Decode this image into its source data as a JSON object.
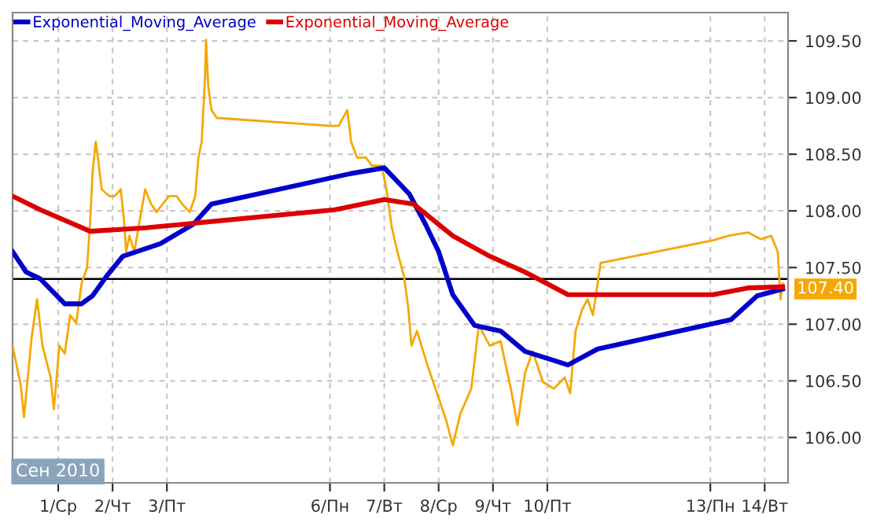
{
  "chart_data": {
    "type": "line",
    "annotations": [
      "Сен 2010"
    ],
    "xlim": [
      0.16,
      14.43
    ],
    "xticks": [
      {
        "value": 1,
        "label": "1/Ср"
      },
      {
        "value": 2,
        "label": "2/Чт"
      },
      {
        "value": 3,
        "label": "3/Пт"
      },
      {
        "value": 6,
        "label": "6/Пн"
      },
      {
        "value": 7,
        "label": "7/Вт"
      },
      {
        "value": 8,
        "label": "8/Ср"
      },
      {
        "value": 9,
        "label": "9/Чт"
      },
      {
        "value": 10,
        "label": "10/Пт"
      },
      {
        "value": 13,
        "label": "13/Пн"
      },
      {
        "value": 14,
        "label": "14/Вт"
      }
    ],
    "ylim": [
      105.6,
      109.75
    ],
    "yticks": [
      {
        "value": 106,
        "label": "106.00"
      },
      {
        "value": 106.5,
        "label": "106.50"
      },
      {
        "value": 107,
        "label": "107.00"
      },
      {
        "value": 107.5,
        "label": "107.50"
      },
      {
        "value": 108,
        "label": "108.00"
      },
      {
        "value": 108.5,
        "label": "108.50"
      },
      {
        "value": 109,
        "label": "109.00"
      },
      {
        "value": 109.5,
        "label": "109.50"
      }
    ],
    "grid": true,
    "legend": "top left",
    "line_style": "solid",
    "marker": "none",
    "ref_lines": [
      {
        "axis": "y",
        "value": 107.4,
        "label": "107.40",
        "color": "#000000"
      }
    ],
    "series": [
      {
        "color": "#f5a800",
        "x": [
          0.16,
          0.31,
          0.37,
          0.51,
          0.61,
          0.71,
          0.86,
          0.92,
          1.02,
          1.12,
          1.22,
          1.33,
          1.43,
          1.53,
          1.59,
          1.63,
          1.69,
          1.73,
          1.8,
          1.94,
          2.04,
          2.15,
          2.21,
          2.25,
          2.31,
          2.4,
          2.5,
          2.6,
          2.71,
          2.81,
          2.92,
          3.04,
          3.18,
          3.28,
          3.42,
          3.52,
          3.58,
          3.64,
          3.7,
          3.72,
          3.76,
          3.82,
          3.92,
          6.02,
          6.16,
          6.32,
          6.39,
          6.5,
          6.66,
          6.77,
          6.95,
          7.04,
          7.14,
          7.24,
          7.36,
          7.44,
          7.5,
          7.6,
          7.8,
          8.0,
          8.14,
          8.26,
          8.4,
          8.6,
          8.74,
          8.94,
          9.14,
          9.33,
          9.45,
          9.59,
          9.73,
          9.92,
          10.12,
          10.32,
          10.42,
          10.52,
          10.64,
          10.74,
          10.84,
          10.98,
          13.05,
          13.33,
          13.69,
          13.93,
          14.12,
          14.24,
          14.29,
          14.33
        ],
        "values": [
          106.81,
          106.46,
          106.18,
          106.88,
          107.22,
          106.81,
          106.53,
          106.25,
          106.81,
          106.74,
          107.08,
          107.01,
          107.36,
          107.5,
          107.92,
          108.33,
          108.61,
          108.47,
          108.19,
          108.13,
          108.13,
          108.19,
          107.92,
          107.64,
          107.78,
          107.64,
          107.92,
          108.19,
          108.06,
          107.99,
          108.06,
          108.13,
          108.13,
          108.06,
          107.99,
          108.13,
          108.47,
          108.61,
          109.17,
          109.51,
          109.1,
          108.89,
          108.82,
          108.75,
          108.75,
          108.89,
          108.61,
          108.47,
          108.47,
          108.4,
          108.4,
          108.19,
          107.85,
          107.64,
          107.43,
          107.15,
          106.81,
          106.94,
          106.63,
          106.35,
          106.15,
          105.93,
          106.21,
          106.43,
          106.99,
          106.81,
          106.85,
          106.43,
          106.11,
          106.57,
          106.76,
          106.49,
          106.43,
          106.53,
          106.39,
          106.94,
          107.13,
          107.22,
          107.08,
          107.54,
          107.74,
          107.78,
          107.81,
          107.75,
          107.78,
          107.64,
          107.22,
          107.36
        ]
      },
      {
        "name": "Exponential_Moving_Average",
        "color": "#0000cc",
        "x": [
          0.16,
          0.41,
          0.67,
          1.12,
          1.43,
          1.63,
          1.9,
          2.19,
          2.88,
          3.48,
          3.82,
          6.39,
          7.0,
          7.46,
          7.76,
          8.0,
          8.26,
          8.66,
          9.14,
          9.59,
          10.12,
          10.38,
          10.92,
          13.38,
          13.86,
          14.33
        ],
        "values": [
          107.64,
          107.46,
          107.4,
          107.18,
          107.18,
          107.25,
          107.43,
          107.6,
          107.71,
          107.88,
          108.06,
          108.33,
          108.38,
          108.15,
          107.88,
          107.64,
          107.26,
          106.99,
          106.94,
          106.76,
          106.68,
          106.64,
          106.78,
          107.04,
          107.25,
          107.31
        ]
      },
      {
        "name": "Exponential_Moving_Average",
        "color": "#dd0000",
        "x": [
          0.16,
          0.67,
          1.59,
          2.6,
          3.48,
          6.09,
          7.0,
          7.54,
          8.26,
          8.94,
          9.59,
          10.38,
          13.05,
          13.69,
          14.33
        ],
        "values": [
          108.13,
          108.01,
          107.82,
          107.85,
          107.89,
          108.01,
          108.1,
          108.06,
          107.78,
          107.6,
          107.46,
          107.26,
          107.26,
          107.32,
          107.33
        ]
      }
    ]
  }
}
